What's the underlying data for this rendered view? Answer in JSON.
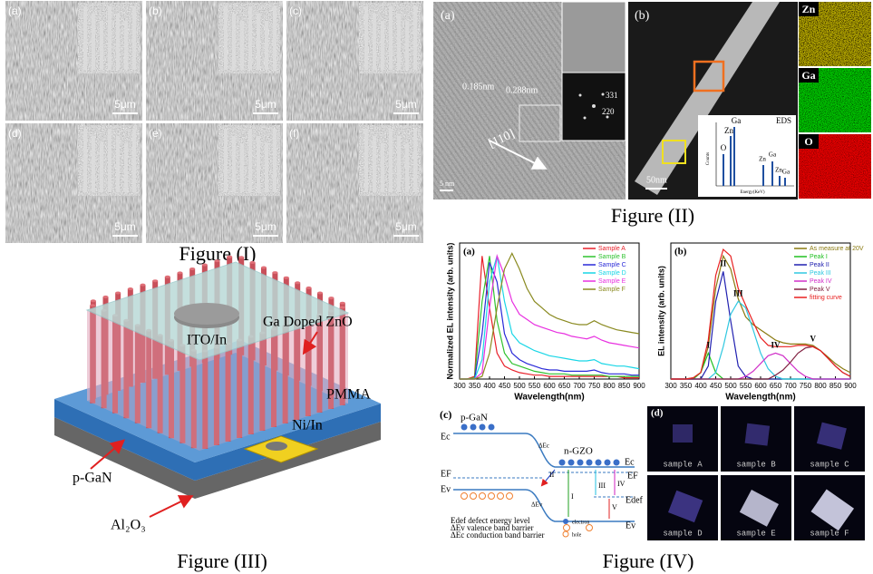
{
  "figure_1": {
    "caption": "Figure (I)",
    "panels": [
      {
        "label": "(a)",
        "scale": "5μm"
      },
      {
        "label": "(b)",
        "scale": "5μm"
      },
      {
        "label": "(c)",
        "scale": "5μm"
      },
      {
        "label": "(d)",
        "scale": "5μm"
      },
      {
        "label": "(e)",
        "scale": "5μm"
      },
      {
        "label": "(f)",
        "scale": "5μm"
      }
    ]
  },
  "figure_2": {
    "caption": "Figure (II)",
    "panel_a": {
      "label": "(a)",
      "spacing_1": "0.185nm",
      "spacing_2": "0.288nm",
      "direction": "[110]",
      "spot_1": "331",
      "spot_2": "220",
      "scale": "5 nm"
    },
    "panel_b": {
      "label": "(b)",
      "scale": "50nm",
      "eds": {
        "title": "EDS",
        "y_label": "Counts",
        "x_label": "Energy(KeV)",
        "peaks": [
          "O",
          "Zn",
          "Ga",
          "Zn",
          "Ga",
          "Zn",
          "Ga"
        ]
      }
    },
    "maps": [
      "Zn",
      "Ga",
      "O"
    ]
  },
  "figure_3": {
    "caption": "Figure (III)",
    "labels": {
      "ito": "ITO/In",
      "gzo": "Ga Doped ZnO",
      "pmma": "PMMA",
      "ni": "Ni/In",
      "pgan": "p-GaN",
      "sapphire": "Al₂O₃"
    }
  },
  "chart_data": [
    {
      "type": "line",
      "label": "(a)",
      "y_label": "Normalized EL intensity (arb. units)",
      "x_label": "Wavelength(nm)",
      "legend": "upper right",
      "x": [
        300,
        325,
        350,
        375,
        400,
        425,
        450,
        475,
        500,
        525,
        550,
        575,
        600,
        625,
        650,
        675,
        700,
        725,
        750,
        775,
        800,
        825,
        850,
        875,
        900
      ],
      "xlim": [
        300,
        900
      ],
      "xticks": [
        300,
        350,
        400,
        450,
        500,
        550,
        600,
        650,
        700,
        750,
        800,
        850,
        900
      ],
      "ylim": [
        0,
        1.05
      ],
      "series": [
        {
          "name": "Sample A",
          "color": "#e8202a",
          "values": [
            0,
            0,
            0.02,
            0.95,
            0.55,
            0.2,
            0.1,
            0.07,
            0.05,
            0.04,
            0.03,
            0.03,
            0.02,
            0.02,
            0.02,
            0.02,
            0.02,
            0.02,
            0.02,
            0.02,
            0.02,
            0.02,
            0.01,
            0.01,
            0.01
          ]
        },
        {
          "name": "Sample B",
          "color": "#2fc22f",
          "values": [
            0,
            0,
            0.01,
            0.6,
            0.95,
            0.45,
            0.2,
            0.12,
            0.1,
            0.08,
            0.06,
            0.05,
            0.04,
            0.04,
            0.04,
            0.03,
            0.03,
            0.03,
            0.03,
            0.03,
            0.02,
            0.02,
            0.02,
            0.02,
            0.02
          ]
        },
        {
          "name": "Sample C",
          "color": "#2a2ad8",
          "values": [
            0,
            0,
            0,
            0.35,
            0.9,
            0.75,
            0.35,
            0.2,
            0.15,
            0.12,
            0.1,
            0.08,
            0.07,
            0.07,
            0.06,
            0.06,
            0.06,
            0.06,
            0.07,
            0.05,
            0.04,
            0.04,
            0.04,
            0.03,
            0.03
          ]
        },
        {
          "name": "Sample D",
          "color": "#19d6e6",
          "values": [
            0,
            0,
            0,
            0.15,
            0.75,
            0.95,
            0.6,
            0.35,
            0.28,
            0.25,
            0.22,
            0.2,
            0.18,
            0.17,
            0.16,
            0.15,
            0.14,
            0.14,
            0.15,
            0.12,
            0.11,
            0.1,
            0.1,
            0.09,
            0.08
          ]
        },
        {
          "name": "Sample E",
          "color": "#e830e0",
          "values": [
            0,
            0,
            0,
            0.05,
            0.55,
            0.95,
            0.8,
            0.6,
            0.5,
            0.46,
            0.42,
            0.4,
            0.38,
            0.36,
            0.35,
            0.33,
            0.32,
            0.31,
            0.33,
            0.3,
            0.28,
            0.27,
            0.26,
            0.25,
            0.24
          ]
        },
        {
          "name": "Sample F",
          "color": "#8a8a20",
          "values": [
            0,
            0,
            0,
            0.02,
            0.2,
            0.55,
            0.85,
            0.97,
            0.85,
            0.7,
            0.6,
            0.55,
            0.5,
            0.47,
            0.45,
            0.43,
            0.42,
            0.42,
            0.45,
            0.42,
            0.4,
            0.38,
            0.37,
            0.36,
            0.35
          ]
        }
      ]
    },
    {
      "type": "line",
      "label": "(b)",
      "y_label": "EL intensity (arb. units)",
      "x_label": "Wavelength(nm)",
      "legend": "upper right",
      "x": [
        300,
        325,
        350,
        375,
        400,
        425,
        450,
        475,
        500,
        525,
        550,
        575,
        600,
        625,
        650,
        675,
        700,
        725,
        750,
        775,
        800,
        825,
        850,
        875,
        900
      ],
      "xlim": [
        300,
        900
      ],
      "xticks": [
        300,
        350,
        400,
        450,
        500,
        550,
        600,
        650,
        700,
        750,
        800,
        850,
        900
      ],
      "ylim": [
        0,
        1.05
      ],
      "series": [
        {
          "name": "As measure at 20V",
          "color": "#8a7a10",
          "values": [
            0,
            0,
            0,
            0.01,
            0.05,
            0.25,
            0.7,
            0.95,
            0.85,
            0.62,
            0.48,
            0.42,
            0.38,
            0.34,
            0.3,
            0.28,
            0.27,
            0.27,
            0.27,
            0.26,
            0.22,
            0.17,
            0.12,
            0.08,
            0.05
          ]
        },
        {
          "name": "Peak I",
          "color": "#20c020",
          "values": [
            0,
            0,
            0,
            0,
            0.05,
            0.2,
            0.05,
            0,
            0,
            0,
            0,
            0,
            0,
            0,
            0,
            0,
            0,
            0,
            0,
            0,
            0,
            0,
            0,
            0,
            0
          ]
        },
        {
          "name": "Peak II",
          "color": "#2020b0",
          "values": [
            0,
            0,
            0,
            0,
            0,
            0.1,
            0.6,
            0.83,
            0.45,
            0.1,
            0.02,
            0,
            0,
            0,
            0,
            0,
            0,
            0,
            0,
            0,
            0,
            0,
            0,
            0,
            0
          ]
        },
        {
          "name": "Peak III",
          "color": "#30c8e0",
          "values": [
            0,
            0,
            0,
            0,
            0,
            0,
            0.05,
            0.25,
            0.5,
            0.6,
            0.55,
            0.38,
            0.2,
            0.08,
            0.02,
            0,
            0,
            0,
            0,
            0,
            0,
            0,
            0,
            0,
            0
          ]
        },
        {
          "name": "Peak IV",
          "color": "#d030c8",
          "values": [
            0,
            0,
            0,
            0,
            0,
            0,
            0,
            0,
            0,
            0,
            0.02,
            0.06,
            0.12,
            0.18,
            0.2,
            0.18,
            0.12,
            0.06,
            0.02,
            0,
            0,
            0,
            0,
            0,
            0
          ]
        },
        {
          "name": "Peak V",
          "color": "#802040",
          "values": [
            0,
            0,
            0,
            0,
            0,
            0,
            0,
            0,
            0,
            0,
            0,
            0,
            0,
            0,
            0.03,
            0.07,
            0.13,
            0.2,
            0.24,
            0.25,
            0.22,
            0.16,
            0.1,
            0.05,
            0.02
          ]
        },
        {
          "name": "fitting curve",
          "color": "#e82020",
          "values": [
            0,
            0,
            0,
            0.01,
            0.05,
            0.3,
            0.8,
            1.0,
            0.95,
            0.7,
            0.57,
            0.44,
            0.32,
            0.26,
            0.25,
            0.25,
            0.25,
            0.26,
            0.26,
            0.25,
            0.22,
            0.16,
            0.1,
            0.05,
            0.02
          ]
        }
      ],
      "annotations": [
        "I",
        "II",
        "III",
        "IV",
        "V"
      ]
    }
  ],
  "figure_4": {
    "caption": "Figure (IV)",
    "panel_c": {
      "label": "(c)",
      "p_side": "p-GaN",
      "n_side": "n-GZO",
      "ec_left": "Ec",
      "ef_left": "EF",
      "ev_left": "Ev",
      "dec": "ΔEc",
      "dev": "ΔEv",
      "ec_right": "Ec",
      "ef_right": "EF",
      "edef": "Edef",
      "ev_right": "Ev",
      "transitions": [
        "I",
        "II",
        "III",
        "IV",
        "V"
      ],
      "legend": [
        "Edef  defect energy level",
        "ΔEv  valence band barrier",
        "ΔEc  conduction band barrier"
      ],
      "electron": "electron",
      "hole": "hole"
    },
    "panel_d": {
      "label": "(d)",
      "samples": [
        "sample A",
        "sample B",
        "sample C",
        "sample D",
        "sample E",
        "sample F"
      ]
    }
  }
}
